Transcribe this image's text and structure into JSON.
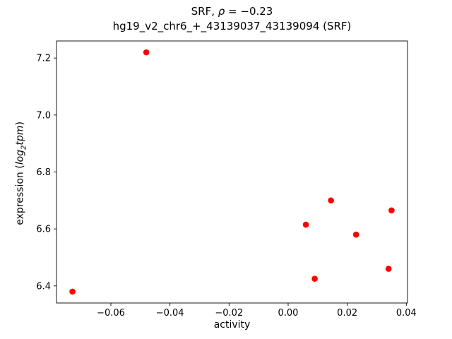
{
  "chart_data": {
    "type": "scatter",
    "title": {
      "prefix": "SRF, ",
      "rho": "ρ",
      "suffix": " = −0.23",
      "line2": "hg19_v2_chr6_+_43139037_43139094 (SRF)"
    },
    "xlabel": "activity",
    "ylabel": {
      "prefix": "expression (",
      "log": "log",
      "sub": "2",
      "tpm": "tpm",
      "close": ")"
    },
    "xlim": [
      -0.0784,
      0.0404
    ],
    "ylim": [
      6.34,
      7.26
    ],
    "xticks": [
      -0.06,
      -0.04,
      -0.02,
      0.0,
      0.02,
      0.04
    ],
    "xtick_labels": [
      "−0.06",
      "−0.04",
      "−0.02",
      "0.00",
      "0.02",
      "0.04"
    ],
    "yticks": [
      6.4,
      6.6,
      6.8,
      7.0,
      7.2
    ],
    "ytick_labels": [
      "6.4",
      "6.6",
      "6.8",
      "7.0",
      "7.2"
    ],
    "grid": false,
    "legend": "none",
    "marker_color": "#ff0000",
    "points": [
      [
        -0.073,
        6.38
      ],
      [
        -0.048,
        7.22
      ],
      [
        0.006,
        6.615
      ],
      [
        0.009,
        6.425
      ],
      [
        0.0145,
        6.7
      ],
      [
        0.023,
        6.58
      ],
      [
        0.034,
        6.46
      ],
      [
        0.035,
        6.665
      ]
    ]
  }
}
